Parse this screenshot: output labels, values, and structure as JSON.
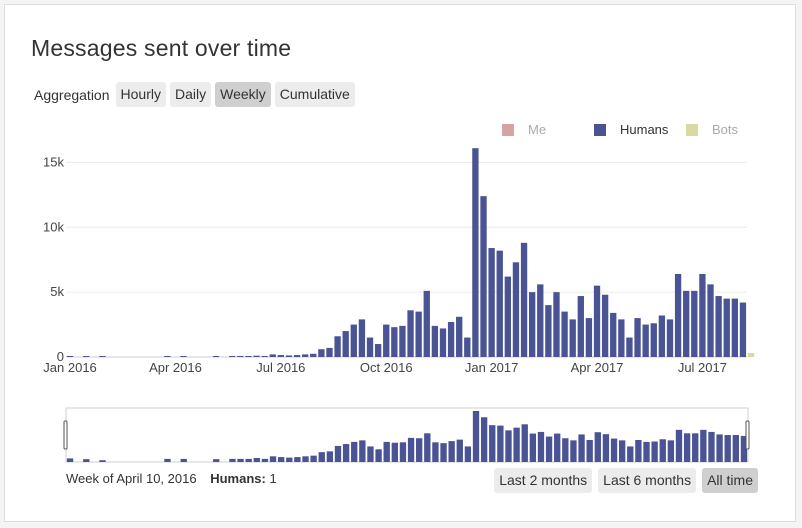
{
  "title": "Messages sent over time",
  "aggregation": {
    "label": "Aggregation",
    "buttons": [
      "Hourly",
      "Daily",
      "Weekly",
      "Cumulative"
    ],
    "active": "Weekly"
  },
  "legend": [
    {
      "name": "Me",
      "color": "#d4a3a3",
      "faded": true
    },
    {
      "name": "Humans",
      "color": "#4a5394",
      "faded": false
    },
    {
      "name": "Bots",
      "color": "#d8da9f",
      "faded": true
    }
  ],
  "hover_info": {
    "week": "Week of April 10, 2016",
    "series_label": "Humans:",
    "series_value": "1"
  },
  "range_buttons": [
    "Last 2 months",
    "Last 6 months",
    "All time"
  ],
  "active_range": "All time",
  "chart_data": {
    "type": "bar",
    "title": "Messages sent over time",
    "xlabel": "",
    "ylabel": "",
    "ylim": [
      0,
      17500
    ],
    "yticks": [
      0,
      5000,
      10000,
      15000
    ],
    "ytick_labels": [
      "0",
      "5k",
      "10k",
      "15k"
    ],
    "xtick_labels": [
      "Jan 2016",
      "Apr 2016",
      "Jul 2016",
      "Oct 2016",
      "Jan 2017",
      "Apr 2017",
      "Jul 2017"
    ],
    "xtick_week_index": [
      0,
      13,
      26,
      39,
      52,
      65,
      78
    ],
    "grid": true,
    "legend_position": "top-right",
    "series": [
      {
        "name": "Humans",
        "color": "#4a5394",
        "values": [
          80,
          0,
          50,
          0,
          20,
          0,
          0,
          0,
          0,
          0,
          0,
          0,
          60,
          0,
          60,
          0,
          0,
          0,
          50,
          0,
          60,
          60,
          60,
          100,
          60,
          200,
          150,
          120,
          150,
          200,
          250,
          600,
          700,
          1600,
          2000,
          2500,
          2900,
          1500,
          1000,
          2500,
          2300,
          2400,
          3600,
          3500,
          5100,
          2400,
          2200,
          2700,
          3100,
          1500,
          16100,
          12400,
          8400,
          8200,
          6200,
          7300,
          8800,
          5000,
          5600,
          4000,
          5000,
          3500,
          2900,
          4700,
          3000,
          5500,
          4800,
          3400,
          2900,
          1500,
          3000,
          2500,
          2600,
          3200,
          2900,
          6400,
          5100,
          5100,
          6400,
          5600,
          4700,
          4500,
          4500,
          4200
        ]
      },
      {
        "name": "Bots",
        "color": "#d8da9f",
        "values": [
          0,
          0,
          0,
          0,
          0,
          0,
          0,
          0,
          0,
          0,
          0,
          0,
          0,
          0,
          0,
          0,
          0,
          0,
          0,
          0,
          0,
          0,
          0,
          0,
          0,
          0,
          0,
          0,
          0,
          0,
          0,
          0,
          0,
          0,
          0,
          0,
          0,
          0,
          0,
          0,
          0,
          0,
          0,
          0,
          0,
          0,
          0,
          0,
          0,
          0,
          0,
          0,
          0,
          0,
          0,
          0,
          0,
          0,
          0,
          0,
          0,
          0,
          0,
          0,
          0,
          0,
          0,
          0,
          0,
          0,
          0,
          0,
          0,
          0,
          0,
          0,
          0,
          0,
          0,
          0,
          0,
          0,
          0,
          0,
          300
        ]
      }
    ]
  }
}
